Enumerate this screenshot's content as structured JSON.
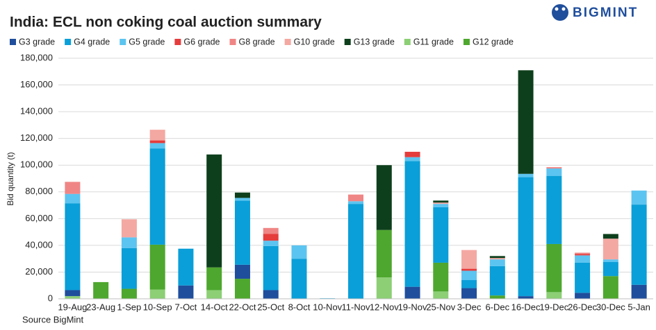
{
  "brand": "BIGMINT",
  "source": "Source BigMint",
  "chart_data": {
    "type": "stacked_bar",
    "title": "India: ECL non coking coal auction summary",
    "y_label": "Bid quantity (t)",
    "categories": [
      "19-Aug",
      "23-Aug",
      "1-Sep",
      "10-Sep",
      "7-Oct",
      "14-Oct",
      "22-Oct",
      "25-Oct",
      "8-Oct",
      "10-Nov",
      "11-Nov",
      "12-Nov",
      "19-Nov",
      "25-Nov",
      "3-Dec",
      "6-Dec",
      "16-Dec",
      "19-Dec",
      "26-Dec",
      "30-Dec",
      "5-Jan"
    ],
    "series": [
      {
        "name": "G3 grade",
        "color": "#1f4e9c",
        "values": [
          4500,
          0,
          0,
          0,
          10000,
          0,
          10500,
          6500,
          0,
          0,
          0,
          0,
          9000,
          0,
          8000,
          0,
          2000,
          0,
          4500,
          0,
          10500
        ]
      },
      {
        "name": "G4 grade",
        "color": "#0a9fd8",
        "values": [
          65000,
          0,
          30500,
          72000,
          27500,
          0,
          48000,
          33000,
          30000,
          0,
          71000,
          0,
          94000,
          41500,
          6000,
          22000,
          89000,
          51000,
          22500,
          10500,
          60000
        ]
      },
      {
        "name": "G5 grade",
        "color": "#5cc4f0",
        "values": [
          7000,
          0,
          8000,
          4000,
          0,
          0,
          2000,
          4000,
          10000,
          500,
          2000,
          0,
          3000,
          2500,
          7000,
          5000,
          2500,
          5500,
          5500,
          2000,
          10500
        ]
      },
      {
        "name": "G6 grade",
        "color": "#e53c3c",
        "values": [
          0,
          0,
          0,
          2000,
          0,
          0,
          0,
          5000,
          0,
          0,
          0,
          0,
          4000,
          0,
          1500,
          0,
          0,
          0,
          1000,
          0,
          0
        ]
      },
      {
        "name": "G8 grade",
        "color": "#f08585",
        "values": [
          9000,
          0,
          0,
          0,
          0,
          0,
          0,
          4500,
          0,
          0,
          5000,
          0,
          0,
          0,
          0,
          0,
          0,
          1000,
          1000,
          0,
          0
        ]
      },
      {
        "name": "G10 grade",
        "color": "#f4a8a2",
        "values": [
          0,
          0,
          13500,
          8000,
          0,
          0,
          0,
          0,
          0,
          0,
          0,
          0,
          0,
          1000,
          14000,
          1000,
          0,
          0,
          0,
          15500,
          0
        ]
      },
      {
        "name": "G13 grade",
        "color": "#0e3f1c",
        "values": [
          0,
          0,
          0,
          0,
          0,
          84500,
          4000,
          0,
          0,
          0,
          0,
          48500,
          0,
          1500,
          0,
          1500,
          77500,
          0,
          0,
          3500,
          0
        ]
      },
      {
        "name": "G11 grade",
        "color": "#8ccf75",
        "values": [
          2000,
          0,
          0,
          7000,
          0,
          6500,
          0,
          0,
          0,
          0,
          0,
          16000,
          0,
          5500,
          0,
          0,
          0,
          5000,
          0,
          0,
          0
        ]
      },
      {
        "name": "G12 grade",
        "color": "#4ea72e",
        "values": [
          0,
          12500,
          7500,
          33500,
          0,
          17000,
          15000,
          0,
          0,
          0,
          0,
          35500,
          0,
          21500,
          0,
          2500,
          0,
          36000,
          0,
          17000,
          0
        ]
      }
    ],
    "stack_order": [
      7,
      8,
      0,
      1,
      2,
      3,
      4,
      5,
      6
    ],
    "ylim": [
      0,
      180000
    ],
    "yticks": [
      0,
      {
        "value": 20000,
        "label": "20,000"
      },
      {
        "value": 40000,
        "label": "40,000"
      },
      {
        "value": 60000,
        "label": "60,000"
      },
      {
        "value": 80000,
        "label": "80,000"
      },
      {
        "value": 100000,
        "label": "100,000"
      },
      {
        "value": 120000,
        "label": "120,000"
      },
      {
        "value": 140000,
        "label": "140,000"
      },
      {
        "value": 160000,
        "label": "160,000"
      },
      {
        "value": 180000,
        "label": "180,000"
      }
    ],
    "grid": true
  }
}
